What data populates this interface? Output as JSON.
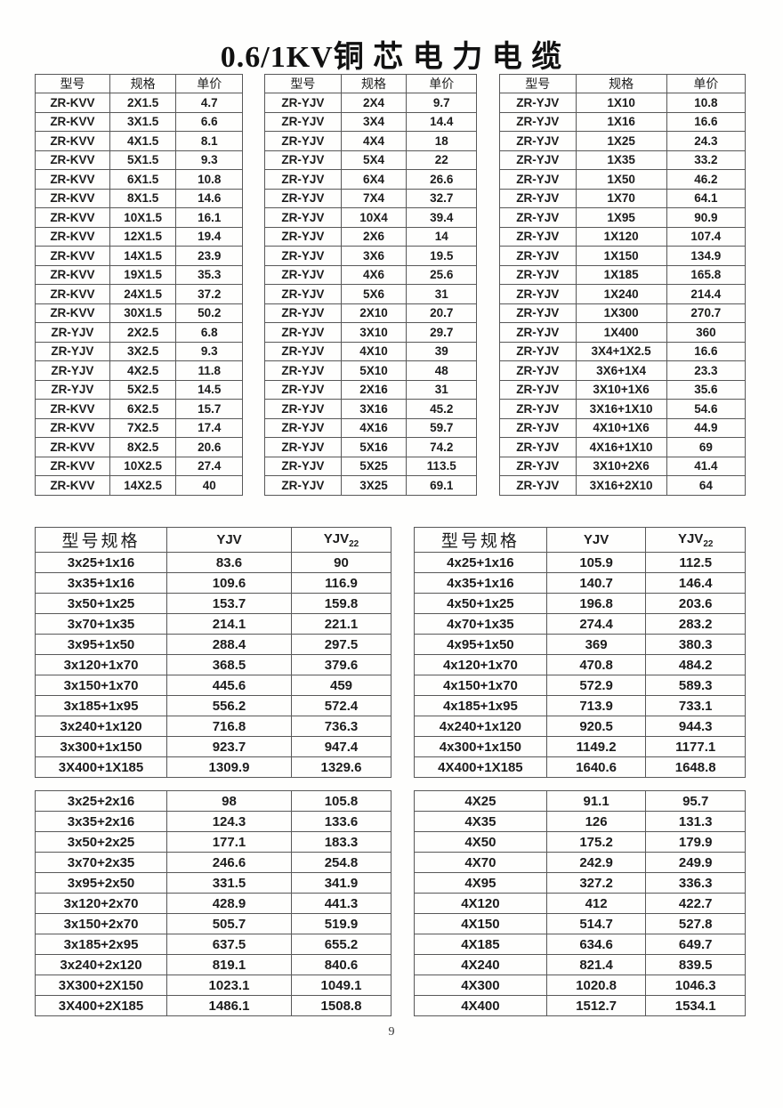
{
  "title": "0.6/1KV铜 芯 电 力 电 缆",
  "page_number": "9",
  "colors": {
    "ink": "#1c1c1c",
    "border": "#585858",
    "paper": "#fefefd"
  },
  "top_section": {
    "headers": [
      "型号",
      "规格",
      "单价"
    ],
    "table1_rows": [
      [
        "ZR-KVV",
        "2X1.5",
        "4.7"
      ],
      [
        "ZR-KVV",
        "3X1.5",
        "6.6"
      ],
      [
        "ZR-KVV",
        "4X1.5",
        "8.1"
      ],
      [
        "ZR-KVV",
        "5X1.5",
        "9.3"
      ],
      [
        "ZR-KVV",
        "6X1.5",
        "10.8"
      ],
      [
        "ZR-KVV",
        "8X1.5",
        "14.6"
      ],
      [
        "ZR-KVV",
        "10X1.5",
        "16.1"
      ],
      [
        "ZR-KVV",
        "12X1.5",
        "19.4"
      ],
      [
        "ZR-KVV",
        "14X1.5",
        "23.9"
      ],
      [
        "ZR-KVV",
        "19X1.5",
        "35.3"
      ],
      [
        "ZR-KVV",
        "24X1.5",
        "37.2"
      ],
      [
        "ZR-KVV",
        "30X1.5",
        "50.2"
      ],
      [
        "ZR-YJV",
        "2X2.5",
        "6.8"
      ],
      [
        "ZR-YJV",
        "3X2.5",
        "9.3"
      ],
      [
        "ZR-YJV",
        "4X2.5",
        "11.8"
      ],
      [
        "ZR-YJV",
        "5X2.5",
        "14.5"
      ],
      [
        "ZR-KVV",
        "6X2.5",
        "15.7"
      ],
      [
        "ZR-KVV",
        "7X2.5",
        "17.4"
      ],
      [
        "ZR-KVV",
        "8X2.5",
        "20.6"
      ],
      [
        "ZR-KVV",
        "10X2.5",
        "27.4"
      ],
      [
        "ZR-KVV",
        "14X2.5",
        "40"
      ]
    ],
    "table2_rows": [
      [
        "ZR-YJV",
        "2X4",
        "9.7"
      ],
      [
        "ZR-YJV",
        "3X4",
        "14.4"
      ],
      [
        "ZR-YJV",
        "4X4",
        "18"
      ],
      [
        "ZR-YJV",
        "5X4",
        "22"
      ],
      [
        "ZR-YJV",
        "6X4",
        "26.6"
      ],
      [
        "ZR-YJV",
        "7X4",
        "32.7"
      ],
      [
        "ZR-YJV",
        "10X4",
        "39.4"
      ],
      [
        "ZR-YJV",
        "2X6",
        "14"
      ],
      [
        "ZR-YJV",
        "3X6",
        "19.5"
      ],
      [
        "ZR-YJV",
        "4X6",
        "25.6"
      ],
      [
        "ZR-YJV",
        "5X6",
        "31"
      ],
      [
        "ZR-YJV",
        "2X10",
        "20.7"
      ],
      [
        "ZR-YJV",
        "3X10",
        "29.7"
      ],
      [
        "ZR-YJV",
        "4X10",
        "39"
      ],
      [
        "ZR-YJV",
        "5X10",
        "48"
      ],
      [
        "ZR-YJV",
        "2X16",
        "31"
      ],
      [
        "ZR-YJV",
        "3X16",
        "45.2"
      ],
      [
        "ZR-YJV",
        "4X16",
        "59.7"
      ],
      [
        "ZR-YJV",
        "5X16",
        "74.2"
      ],
      [
        "ZR-YJV",
        "5X25",
        "113.5"
      ],
      [
        "ZR-YJV",
        "3X25",
        "69.1"
      ]
    ],
    "table3_rows": [
      [
        "ZR-YJV",
        "1X10",
        "10.8"
      ],
      [
        "ZR-YJV",
        "1X16",
        "16.6"
      ],
      [
        "ZR-YJV",
        "1X25",
        "24.3"
      ],
      [
        "ZR-YJV",
        "1X35",
        "33.2"
      ],
      [
        "ZR-YJV",
        "1X50",
        "46.2"
      ],
      [
        "ZR-YJV",
        "1X70",
        "64.1"
      ],
      [
        "ZR-YJV",
        "1X95",
        "90.9"
      ],
      [
        "ZR-YJV",
        "1X120",
        "107.4"
      ],
      [
        "ZR-YJV",
        "1X150",
        "134.9"
      ],
      [
        "ZR-YJV",
        "1X185",
        "165.8"
      ],
      [
        "ZR-YJV",
        "1X240",
        "214.4"
      ],
      [
        "ZR-YJV",
        "1X300",
        "270.7"
      ],
      [
        "ZR-YJV",
        "1X400",
        "360"
      ],
      [
        "ZR-YJV",
        "3X4+1X2.5",
        "16.6"
      ],
      [
        "ZR-YJV",
        "3X6+1X4",
        "23.3"
      ],
      [
        "ZR-YJV",
        "3X10+1X6",
        "35.6"
      ],
      [
        "ZR-YJV",
        "3X16+1X10",
        "54.6"
      ],
      [
        "ZR-YJV",
        "4X10+1X6",
        "44.9"
      ],
      [
        "ZR-YJV",
        "4X16+1X10",
        "69"
      ],
      [
        "ZR-YJV",
        "3X10+2X6",
        "41.4"
      ],
      [
        "ZR-YJV",
        "3X16+2X10",
        "64"
      ]
    ]
  },
  "lower_section": {
    "header_spec": "型号规格",
    "header_yjv": "YJV",
    "header_yjv22_base": "YJV",
    "header_yjv22_sub": "22",
    "middle_left_rows": [
      [
        "3x25+1x16",
        "83.6",
        "90"
      ],
      [
        "3x35+1x16",
        "109.6",
        "116.9"
      ],
      [
        "3x50+1x25",
        "153.7",
        "159.8"
      ],
      [
        "3x70+1x35",
        "214.1",
        "221.1"
      ],
      [
        "3x95+1x50",
        "288.4",
        "297.5"
      ],
      [
        "3x120+1x70",
        "368.5",
        "379.6"
      ],
      [
        "3x150+1x70",
        "445.6",
        "459"
      ],
      [
        "3x185+1x95",
        "556.2",
        "572.4"
      ],
      [
        "3x240+1x120",
        "716.8",
        "736.3"
      ],
      [
        "3x300+1x150",
        "923.7",
        "947.4"
      ],
      [
        "3X400+1X185",
        "1309.9",
        "1329.6"
      ]
    ],
    "middle_right_rows": [
      [
        "4x25+1x16",
        "105.9",
        "112.5"
      ],
      [
        "4x35+1x16",
        "140.7",
        "146.4"
      ],
      [
        "4x50+1x25",
        "196.8",
        "203.6"
      ],
      [
        "4x70+1x35",
        "274.4",
        "283.2"
      ],
      [
        "4x95+1x50",
        "369",
        "380.3"
      ],
      [
        "4x120+1x70",
        "470.8",
        "484.2"
      ],
      [
        "4x150+1x70",
        "572.9",
        "589.3"
      ],
      [
        "4x185+1x95",
        "713.9",
        "733.1"
      ],
      [
        "4x240+1x120",
        "920.5",
        "944.3"
      ],
      [
        "4x300+1x150",
        "1149.2",
        "1177.1"
      ],
      [
        "4X400+1X185",
        "1640.6",
        "1648.8"
      ]
    ],
    "bottom_left_rows": [
      [
        "3x25+2x16",
        "98",
        "105.8"
      ],
      [
        "3x35+2x16",
        "124.3",
        "133.6"
      ],
      [
        "3x50+2x25",
        "177.1",
        "183.3"
      ],
      [
        "3x70+2x35",
        "246.6",
        "254.8"
      ],
      [
        "3x95+2x50",
        "331.5",
        "341.9"
      ],
      [
        "3x120+2x70",
        "428.9",
        "441.3"
      ],
      [
        "3x150+2x70",
        "505.7",
        "519.9"
      ],
      [
        "3x185+2x95",
        "637.5",
        "655.2"
      ],
      [
        "3x240+2x120",
        "819.1",
        "840.6"
      ],
      [
        "3X300+2X150",
        "1023.1",
        "1049.1"
      ],
      [
        "3X400+2X185",
        "1486.1",
        "1508.8"
      ]
    ],
    "bottom_right_rows": [
      [
        "4X25",
        "91.1",
        "95.7"
      ],
      [
        "4X35",
        "126",
        "131.3"
      ],
      [
        "4X50",
        "175.2",
        "179.9"
      ],
      [
        "4X70",
        "242.9",
        "249.9"
      ],
      [
        "4X95",
        "327.2",
        "336.3"
      ],
      [
        "4X120",
        "412",
        "422.7"
      ],
      [
        "4X150",
        "514.7",
        "527.8"
      ],
      [
        "4X185",
        "634.6",
        "649.7"
      ],
      [
        "4X240",
        "821.4",
        "839.5"
      ],
      [
        "4X300",
        "1020.8",
        "1046.3"
      ],
      [
        "4X400",
        "1512.7",
        "1534.1"
      ]
    ]
  }
}
